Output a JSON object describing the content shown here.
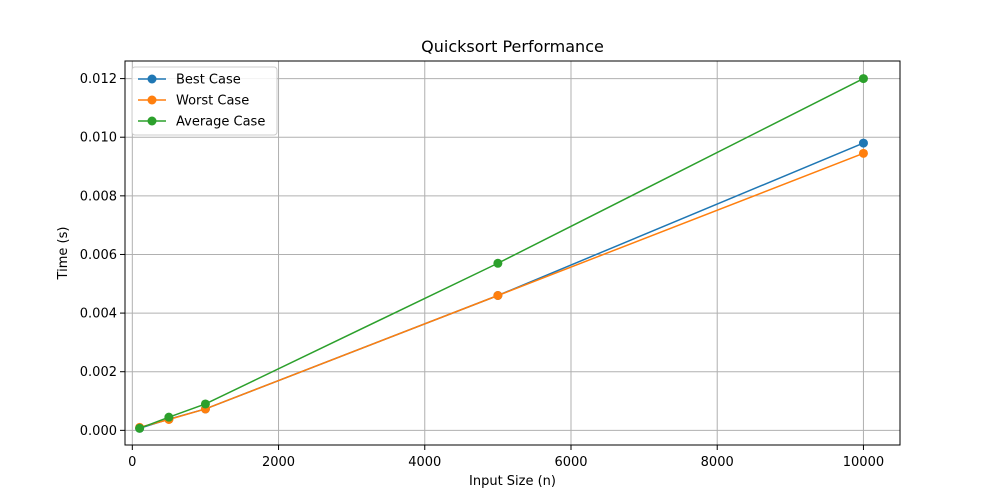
{
  "chart_data": {
    "type": "line",
    "title": "Quicksort Performance",
    "xlabel": "Input Size (n)",
    "ylabel": "Time (s)",
    "xlim": [
      -100,
      10500
    ],
    "ylim": [
      -0.0005,
      0.0126
    ],
    "xticks": [
      0,
      2000,
      4000,
      6000,
      8000,
      10000
    ],
    "xtick_labels": [
      "0",
      "2000",
      "4000",
      "6000",
      "8000",
      "10000"
    ],
    "yticks": [
      0.0,
      0.002,
      0.004,
      0.006,
      0.008,
      0.01,
      0.012
    ],
    "ytick_labels": [
      "0.000",
      "0.002",
      "0.004",
      "0.006",
      "0.008",
      "0.010",
      "0.012"
    ],
    "grid": true,
    "legend_position": "top-left",
    "x": [
      100,
      500,
      1000,
      5000,
      10000
    ],
    "series": [
      {
        "name": "Best Case",
        "color": "#1f77b4",
        "values": [
          7e-05,
          0.00038,
          0.00073,
          0.0046,
          0.0098
        ]
      },
      {
        "name": "Worst Case",
        "color": "#ff7f0e",
        "values": [
          0.0001,
          0.00037,
          0.00073,
          0.0046,
          0.00945
        ]
      },
      {
        "name": "Average Case",
        "color": "#2ca02c",
        "values": [
          7e-05,
          0.00045,
          0.0009,
          0.0057,
          0.012
        ]
      }
    ]
  }
}
